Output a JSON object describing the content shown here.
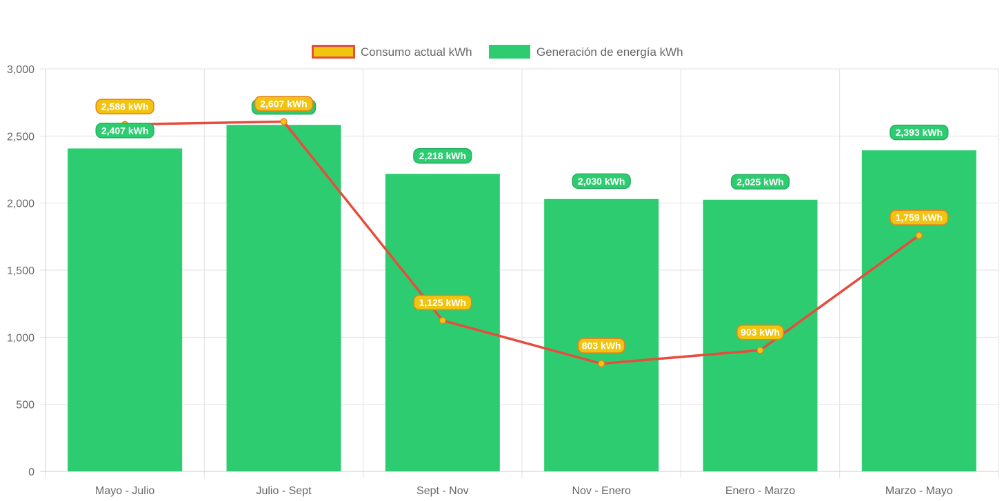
{
  "chart_data": {
    "type": "bar",
    "categories": [
      "Mayo - Julio",
      "Julio - Sept",
      "Sept - Nov",
      "Nov - Enero",
      "Enero - Marzo",
      "Marzo - Mayo"
    ],
    "ylim": [
      0,
      3000
    ],
    "yticks": [
      0,
      500,
      1000,
      1500,
      2000,
      2500,
      3000
    ],
    "ytick_labels": [
      "0",
      "500",
      "1,000",
      "1,500",
      "2,000",
      "2,500",
      "3,000"
    ],
    "grid": true,
    "legend_position": "top",
    "series": [
      {
        "name": "Consumo actual kWh",
        "type": "line",
        "values": [
          2586,
          2607,
          1125,
          803,
          903,
          1759
        ],
        "labels": [
          "2,586 kWh",
          "2,607 kWh",
          "1,125 kWh",
          "803 kWh",
          "903 kWh",
          "1,759 kWh"
        ],
        "color": "#e74c3c",
        "fill_color": "#f1c40f"
      },
      {
        "name": "Generación de energía kWh",
        "type": "bar",
        "values": [
          2407,
          2583,
          2218,
          2030,
          2025,
          2393
        ],
        "labels": [
          "2,407 kWh",
          "",
          "2,218 kWh",
          "2,030 kWh",
          "2,025 kWh",
          "2,393 kWh"
        ],
        "color": "#2ecc71",
        "label_border": "#27ae60"
      }
    ]
  }
}
